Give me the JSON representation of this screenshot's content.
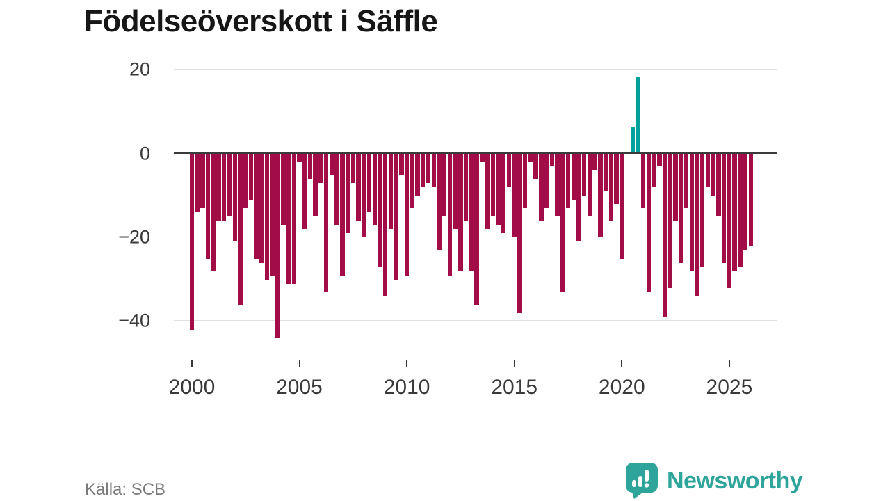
{
  "title": "Födelseöverskott i Säffle",
  "source_label": "Källa: SCB",
  "logo": {
    "text": "Newsworthy",
    "icon": "bar-chart-speech-bubble-icon",
    "color": "#2ea49a"
  },
  "chart_data": {
    "type": "bar",
    "title": "Födelseöverskott i Säffle",
    "xlabel": "",
    "ylabel": "",
    "ylim": [
      -46,
      22
    ],
    "grid": "horizontal",
    "legend": "none",
    "yticks": [
      {
        "label": "20",
        "value": 20
      },
      {
        "label": "0",
        "value": 0
      },
      {
        "label": "−20",
        "value": -20
      },
      {
        "label": "−40",
        "value": -40
      }
    ],
    "xticks": [
      {
        "label": "2000",
        "year": 2000
      },
      {
        "label": "2005",
        "year": 2005
      },
      {
        "label": "2010",
        "year": 2010
      },
      {
        "label": "2015",
        "year": 2015
      },
      {
        "label": "2020",
        "year": 2020
      },
      {
        "label": "2025",
        "year": 2025
      }
    ],
    "colors": {
      "negative": "#a30d47",
      "positive": "#00a09b",
      "zeroline": "#3b3b3b",
      "gridline": "#e0e0e0"
    },
    "categories": [
      "2000 Q1",
      "2000 Q2",
      "2000 Q3",
      "2000 Q4",
      "2001 Q1",
      "2001 Q2",
      "2001 Q3",
      "2001 Q4",
      "2002 Q1",
      "2002 Q2",
      "2002 Q3",
      "2002 Q4",
      "2003 Q1",
      "2003 Q2",
      "2003 Q3",
      "2003 Q4",
      "2004 Q1",
      "2004 Q2",
      "2004 Q3",
      "2004 Q4",
      "2005 Q1",
      "2005 Q2",
      "2005 Q3",
      "2005 Q4",
      "2006 Q1",
      "2006 Q2",
      "2006 Q3",
      "2006 Q4",
      "2007 Q1",
      "2007 Q2",
      "2007 Q3",
      "2007 Q4",
      "2008 Q1",
      "2008 Q2",
      "2008 Q3",
      "2008 Q4",
      "2009 Q1",
      "2009 Q2",
      "2009 Q3",
      "2009 Q4",
      "2010 Q1",
      "2010 Q2",
      "2010 Q3",
      "2010 Q4",
      "2011 Q1",
      "2011 Q2",
      "2011 Q3",
      "2011 Q4",
      "2012 Q1",
      "2012 Q2",
      "2012 Q3",
      "2012 Q4",
      "2013 Q1",
      "2013 Q2",
      "2013 Q3",
      "2013 Q4",
      "2014 Q1",
      "2014 Q2",
      "2014 Q3",
      "2014 Q4",
      "2015 Q1",
      "2015 Q2",
      "2015 Q3",
      "2015 Q4",
      "2016 Q1",
      "2016 Q2",
      "2016 Q3",
      "2016 Q4",
      "2017 Q1",
      "2017 Q2",
      "2017 Q3",
      "2017 Q4",
      "2018 Q1",
      "2018 Q2",
      "2018 Q3",
      "2018 Q4",
      "2019 Q1",
      "2019 Q2",
      "2019 Q3",
      "2019 Q4",
      "2020 Q1",
      "2020 Q2",
      "2020 Q3",
      "2020 Q4",
      "2021 Q1",
      "2021 Q2",
      "2021 Q3",
      "2021 Q4",
      "2022 Q1",
      "2022 Q2",
      "2022 Q3",
      "2022 Q4",
      "2023 Q1",
      "2023 Q2",
      "2023 Q3",
      "2023 Q4",
      "2024 Q1",
      "2024 Q2",
      "2024 Q3",
      "2024 Q4",
      "2025 Q1",
      "2025 Q2",
      "2025 Q3",
      "2025 Q4",
      "2026 Q1"
    ],
    "values": [
      -42,
      -14,
      -13,
      -25,
      -28,
      -16,
      -16,
      -15,
      -21,
      -36,
      -13,
      -11,
      -25,
      -26,
      -30,
      -29,
      -44,
      -17,
      -31,
      -31,
      -2,
      -18,
      -6,
      -15,
      -7,
      -33,
      -5,
      -17,
      -29,
      -19,
      -7,
      -16,
      -20,
      -14,
      -17,
      -27,
      -34,
      -18,
      -30,
      -5,
      -29,
      -13,
      -10,
      -8,
      -7,
      -8,
      -23,
      -15,
      -29,
      -18,
      -28,
      -16,
      -28,
      -36,
      -2,
      -18,
      -15,
      -17,
      -19,
      -8,
      -20,
      -38,
      -13,
      -2,
      -6,
      -16,
      -13,
      -3,
      -15,
      -33,
      -13,
      -11,
      -21,
      -10,
      -15,
      -4,
      -20,
      -9,
      -16,
      -12,
      -25,
      0,
      6,
      18,
      -13,
      -33,
      -8,
      -3,
      -39,
      -32,
      -16,
      -26,
      -13,
      -28,
      -34,
      -27,
      -8,
      -10,
      -15,
      -26,
      -32,
      -28,
      -27,
      -23,
      -22
    ]
  }
}
